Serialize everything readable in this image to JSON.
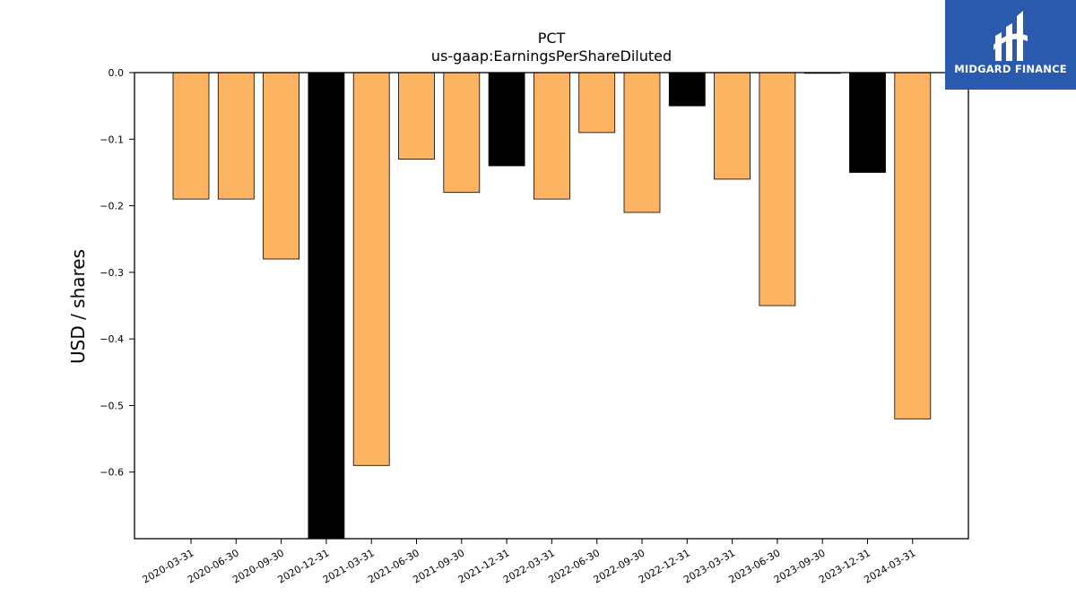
{
  "chart_data": {
    "type": "bar",
    "title": "PCT",
    "subtitle": "us-gaap:EarningsPerShareDiluted",
    "ylabel": "USD / shares",
    "xlabel": "",
    "categories": [
      "2020-03-31",
      "2020-06-30",
      "2020-09-30",
      "2020-12-31",
      "2021-03-31",
      "2021-06-30",
      "2021-09-30",
      "2021-12-31",
      "2022-03-31",
      "2022-06-30",
      "2022-09-30",
      "2022-12-31",
      "2023-03-31",
      "2023-06-30",
      "2023-09-30",
      "2023-12-31",
      "2024-03-31"
    ],
    "values": [
      -0.19,
      -0.19,
      -0.28,
      -0.7,
      -0.59,
      -0.13,
      -0.18,
      -0.14,
      -0.19,
      -0.09,
      -0.21,
      -0.05,
      -0.16,
      -0.35,
      0.0,
      -0.15,
      -0.52
    ],
    "bar_colors": [
      "#fdb462",
      "#fdb462",
      "#fdb462",
      "#000000",
      "#fdb462",
      "#fdb462",
      "#fdb462",
      "#000000",
      "#fdb462",
      "#fdb462",
      "#fdb462",
      "#000000",
      "#fdb462",
      "#fdb462",
      "#fdb462",
      "#000000",
      "#fdb462"
    ],
    "ylim": [
      -0.7,
      0.0
    ],
    "yticks": [
      0.0,
      -0.1,
      -0.2,
      -0.3,
      -0.4,
      -0.5,
      -0.6
    ],
    "ytick_labels": [
      "0.0",
      "−0.1",
      "−0.2",
      "−0.3",
      "−0.4",
      "−0.5",
      "−0.6"
    ],
    "grid": false,
    "legend": "none"
  },
  "logo": {
    "text": "MIDGARD FINANCE",
    "background": "#2a5aad"
  }
}
